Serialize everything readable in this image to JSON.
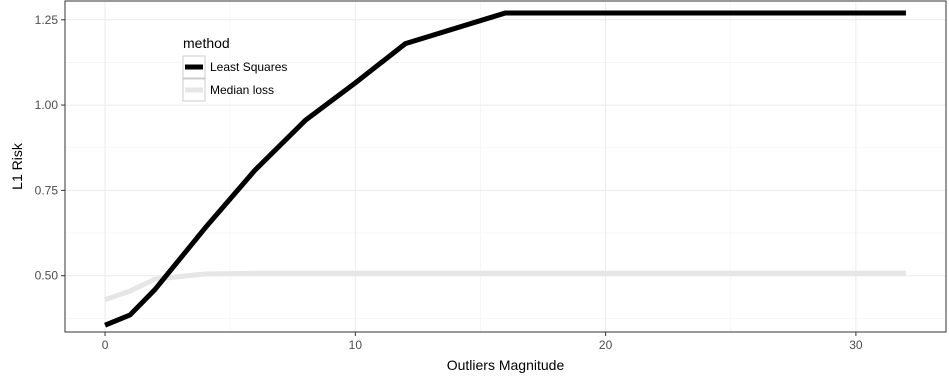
{
  "chart_data": {
    "type": "line",
    "title": "",
    "xlabel": "Outliers Magnitude",
    "ylabel": "L1 Risk",
    "xlim": [
      -1.6,
      33.6
    ],
    "ylim": [
      0.335,
      1.305
    ],
    "x_ticks": [
      0,
      10,
      20,
      30
    ],
    "x_tick_labels": [
      "0",
      "10",
      "20",
      "30"
    ],
    "y_ticks": [
      0.5,
      0.75,
      1.0,
      1.25
    ],
    "y_tick_labels": [
      "0.50",
      "0.75",
      "1.00",
      "1.25"
    ],
    "grid": true,
    "legend": {
      "title": "method",
      "position": "top-left-inside"
    },
    "series": [
      {
        "name": "Least Squares",
        "color": "#000000",
        "x": [
          0,
          1,
          2,
          4,
          6,
          8,
          10,
          12,
          16,
          32
        ],
        "y": [
          0.355,
          0.385,
          0.46,
          0.64,
          0.81,
          0.955,
          1.065,
          1.18,
          1.27,
          1.27
        ]
      },
      {
        "name": "Median loss",
        "color": "#e6e6e6",
        "x": [
          0,
          1,
          2,
          4,
          6,
          8,
          10,
          12,
          16,
          32
        ],
        "y": [
          0.43,
          0.455,
          0.49,
          0.505,
          0.507,
          0.507,
          0.507,
          0.507,
          0.507,
          0.507
        ]
      }
    ]
  }
}
